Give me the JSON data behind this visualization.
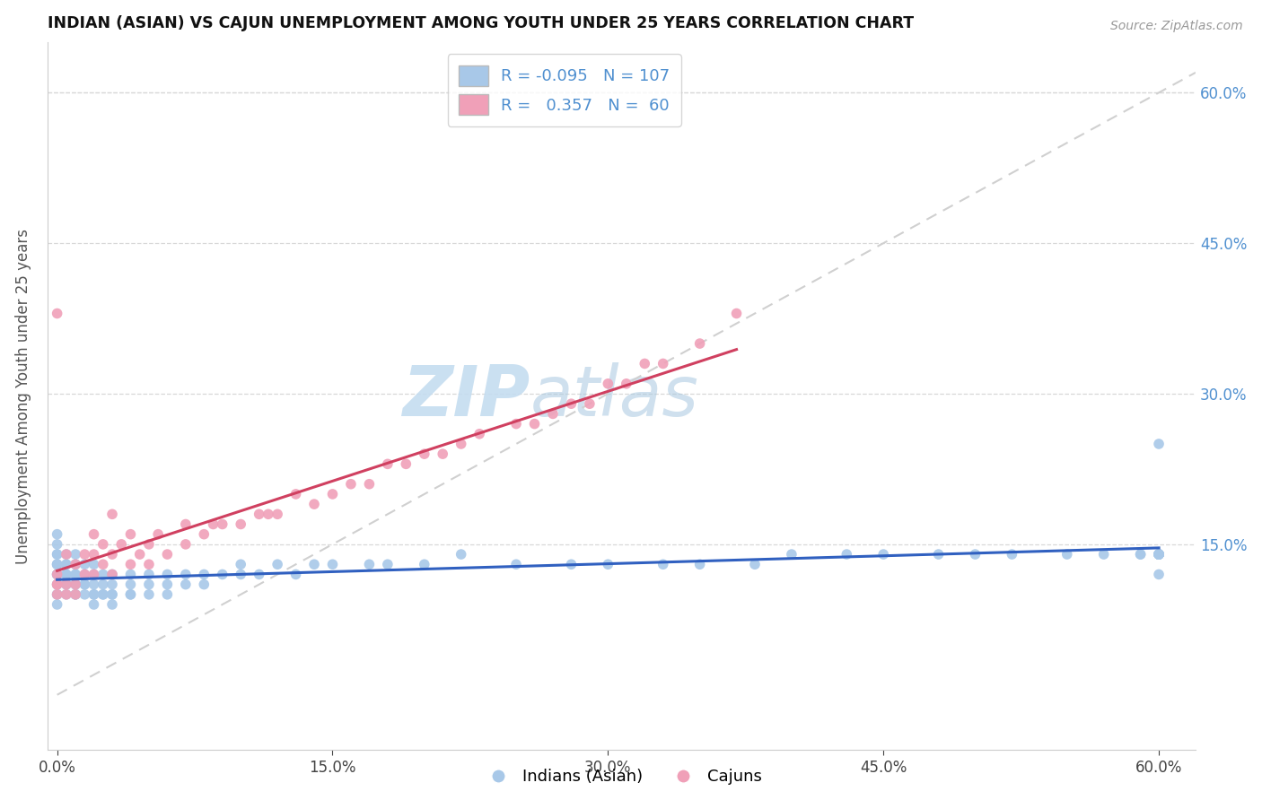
{
  "title": "INDIAN (ASIAN) VS CAJUN UNEMPLOYMENT AMONG YOUTH UNDER 25 YEARS CORRELATION CHART",
  "source": "Source: ZipAtlas.com",
  "ylabel": "Unemployment Among Youth under 25 years",
  "xlim": [
    -0.005,
    0.62
  ],
  "ylim": [
    -0.055,
    0.65
  ],
  "xtick_vals": [
    0.0,
    0.15,
    0.3,
    0.45,
    0.6
  ],
  "xtick_labels": [
    "0.0%",
    "15.0%",
    "30.0%",
    "45.0%",
    "60.0%"
  ],
  "ytick_vals": [
    0.15,
    0.3,
    0.45,
    0.6
  ],
  "ytick_labels": [
    "15.0%",
    "30.0%",
    "45.0%",
    "60.0%"
  ],
  "legend_r_indian": "-0.095",
  "legend_n_indian": "107",
  "legend_r_cajun": "0.357",
  "legend_n_cajun": "60",
  "indian_dot_color": "#a8c8e8",
  "cajun_dot_color": "#f0a0b8",
  "indian_line_color": "#3060c0",
  "cajun_line_color": "#d04060",
  "diag_line_color": "#d0d0d0",
  "grid_color": "#d8d8d8",
  "right_tick_color": "#5090d0",
  "watermark_color": "#c5ddf0",
  "indian_x": [
    0.0,
    0.0,
    0.0,
    0.0,
    0.0,
    0.0,
    0.0,
    0.0,
    0.0,
    0.0,
    0.0,
    0.0,
    0.0,
    0.0,
    0.0,
    0.005,
    0.005,
    0.005,
    0.005,
    0.005,
    0.005,
    0.005,
    0.005,
    0.01,
    0.01,
    0.01,
    0.01,
    0.01,
    0.01,
    0.01,
    0.01,
    0.01,
    0.015,
    0.015,
    0.015,
    0.015,
    0.015,
    0.02,
    0.02,
    0.02,
    0.02,
    0.02,
    0.02,
    0.025,
    0.025,
    0.025,
    0.025,
    0.03,
    0.03,
    0.03,
    0.03,
    0.03,
    0.04,
    0.04,
    0.04,
    0.04,
    0.05,
    0.05,
    0.05,
    0.06,
    0.06,
    0.06,
    0.07,
    0.07,
    0.08,
    0.08,
    0.09,
    0.1,
    0.1,
    0.11,
    0.12,
    0.13,
    0.14,
    0.15,
    0.17,
    0.18,
    0.2,
    0.22,
    0.25,
    0.28,
    0.3,
    0.33,
    0.35,
    0.38,
    0.4,
    0.43,
    0.45,
    0.48,
    0.5,
    0.52,
    0.55,
    0.57,
    0.59,
    0.59,
    0.6,
    0.6,
    0.6,
    0.6,
    0.6,
    0.6,
    0.6,
    0.6,
    0.6,
    0.6,
    0.6
  ],
  "indian_y": [
    0.1,
    0.11,
    0.12,
    0.12,
    0.13,
    0.13,
    0.14,
    0.14,
    0.15,
    0.16,
    0.12,
    0.13,
    0.11,
    0.1,
    0.09,
    0.1,
    0.11,
    0.12,
    0.13,
    0.14,
    0.13,
    0.12,
    0.11,
    0.1,
    0.11,
    0.12,
    0.13,
    0.14,
    0.12,
    0.11,
    0.1,
    0.13,
    0.1,
    0.11,
    0.12,
    0.13,
    0.11,
    0.09,
    0.1,
    0.11,
    0.12,
    0.13,
    0.1,
    0.1,
    0.11,
    0.12,
    0.1,
    0.09,
    0.1,
    0.11,
    0.12,
    0.1,
    0.1,
    0.11,
    0.12,
    0.1,
    0.1,
    0.11,
    0.12,
    0.11,
    0.12,
    0.1,
    0.11,
    0.12,
    0.11,
    0.12,
    0.12,
    0.12,
    0.13,
    0.12,
    0.13,
    0.12,
    0.13,
    0.13,
    0.13,
    0.13,
    0.13,
    0.14,
    0.13,
    0.13,
    0.13,
    0.13,
    0.13,
    0.13,
    0.14,
    0.14,
    0.14,
    0.14,
    0.14,
    0.14,
    0.14,
    0.14,
    0.14,
    0.14,
    0.14,
    0.14,
    0.14,
    0.14,
    0.14,
    0.14,
    0.14,
    0.14,
    0.14,
    0.25,
    0.12
  ],
  "cajun_x": [
    0.0,
    0.0,
    0.0,
    0.0,
    0.0,
    0.005,
    0.005,
    0.005,
    0.01,
    0.01,
    0.01,
    0.015,
    0.015,
    0.02,
    0.02,
    0.02,
    0.025,
    0.025,
    0.03,
    0.03,
    0.03,
    0.035,
    0.04,
    0.04,
    0.045,
    0.05,
    0.05,
    0.055,
    0.06,
    0.07,
    0.07,
    0.08,
    0.085,
    0.09,
    0.1,
    0.11,
    0.115,
    0.12,
    0.13,
    0.14,
    0.15,
    0.16,
    0.17,
    0.18,
    0.19,
    0.2,
    0.21,
    0.22,
    0.23,
    0.25,
    0.26,
    0.27,
    0.28,
    0.29,
    0.3,
    0.31,
    0.32,
    0.33,
    0.35,
    0.37
  ],
  "cajun_y": [
    0.1,
    0.11,
    0.12,
    0.38,
    0.11,
    0.1,
    0.11,
    0.14,
    0.1,
    0.11,
    0.13,
    0.12,
    0.14,
    0.12,
    0.14,
    0.16,
    0.13,
    0.15,
    0.12,
    0.14,
    0.18,
    0.15,
    0.13,
    0.16,
    0.14,
    0.13,
    0.15,
    0.16,
    0.14,
    0.15,
    0.17,
    0.16,
    0.17,
    0.17,
    0.17,
    0.18,
    0.18,
    0.18,
    0.2,
    0.19,
    0.2,
    0.21,
    0.21,
    0.23,
    0.23,
    0.24,
    0.24,
    0.25,
    0.26,
    0.27,
    0.27,
    0.28,
    0.29,
    0.29,
    0.31,
    0.31,
    0.33,
    0.33,
    0.35,
    0.38
  ]
}
